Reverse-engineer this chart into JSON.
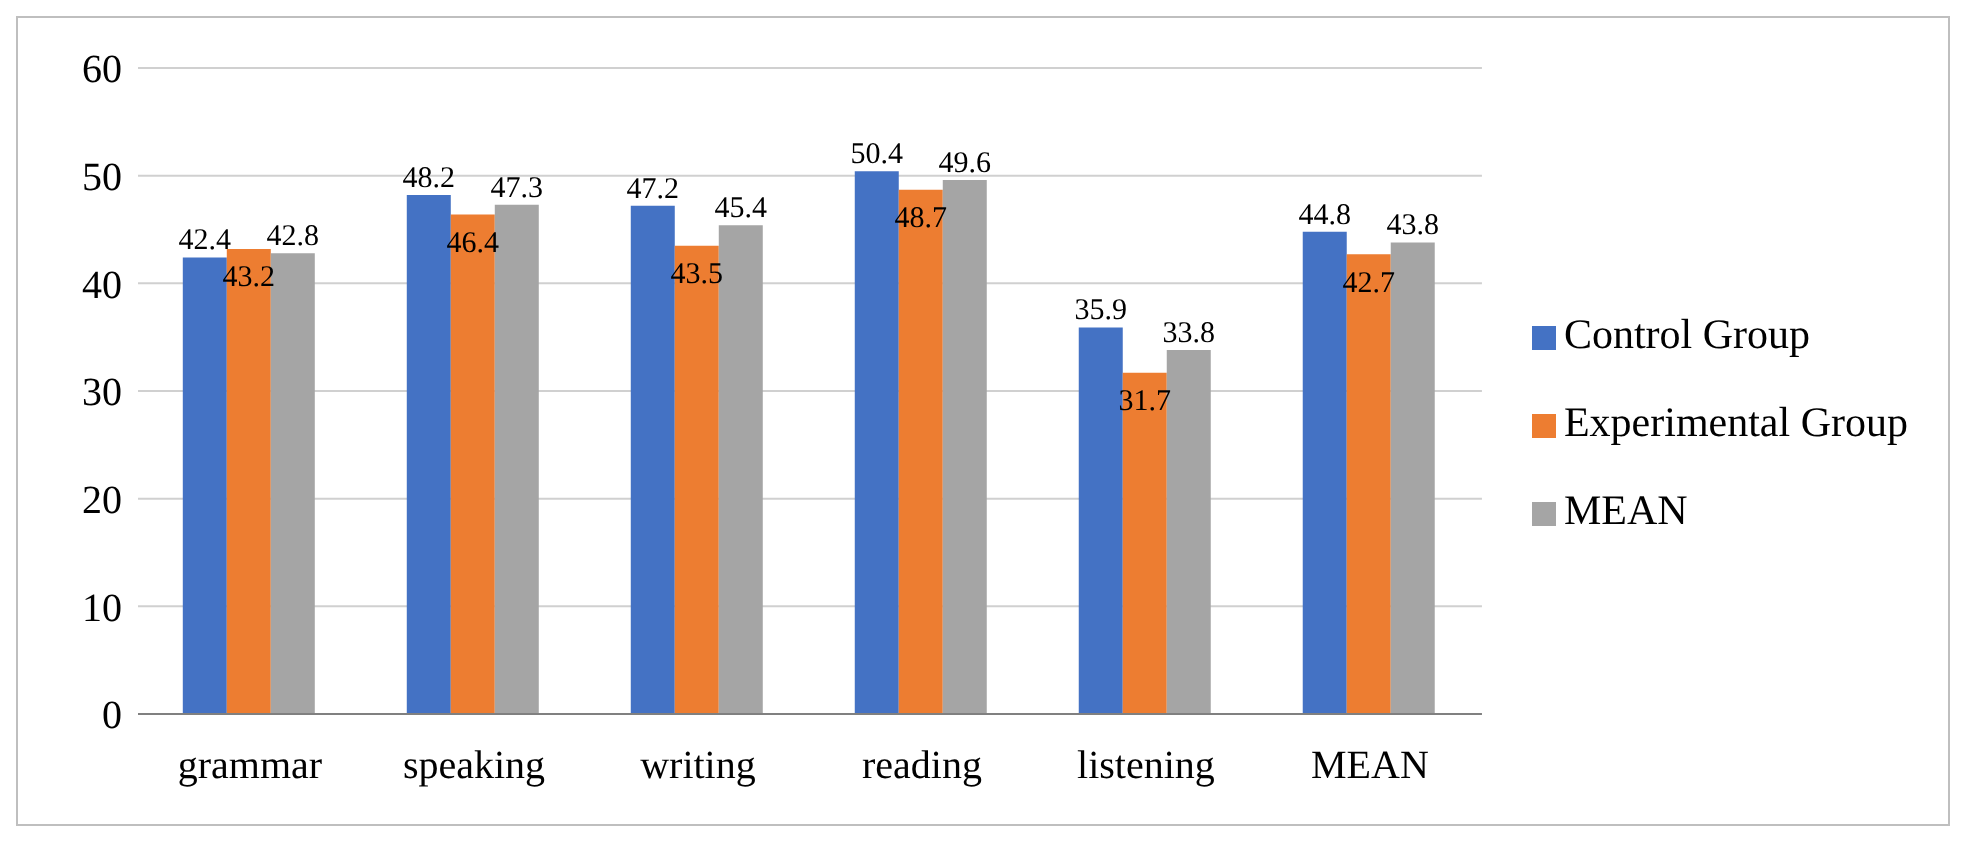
{
  "chart_data": {
    "type": "bar",
    "categories": [
      "grammar",
      "speaking",
      "writing",
      "reading",
      "listening",
      "MEAN"
    ],
    "series": [
      {
        "name": "Control Group",
        "color": "#4472c4",
        "values": [
          42.4,
          48.2,
          47.2,
          50.4,
          35.9,
          44.8
        ]
      },
      {
        "name": "Experimental Group",
        "color": "#ed7d31",
        "values": [
          43.2,
          46.4,
          43.5,
          48.7,
          31.7,
          42.7
        ]
      },
      {
        "name": "MEAN",
        "color": "#a5a5a5",
        "values": [
          42.8,
          47.3,
          45.4,
          49.6,
          33.8,
          43.8
        ]
      }
    ],
    "ylim": [
      0,
      60
    ],
    "yticks": [
      0,
      10,
      20,
      30,
      40,
      50,
      60
    ],
    "grid": "y",
    "legend": "right",
    "data_labels": true
  }
}
